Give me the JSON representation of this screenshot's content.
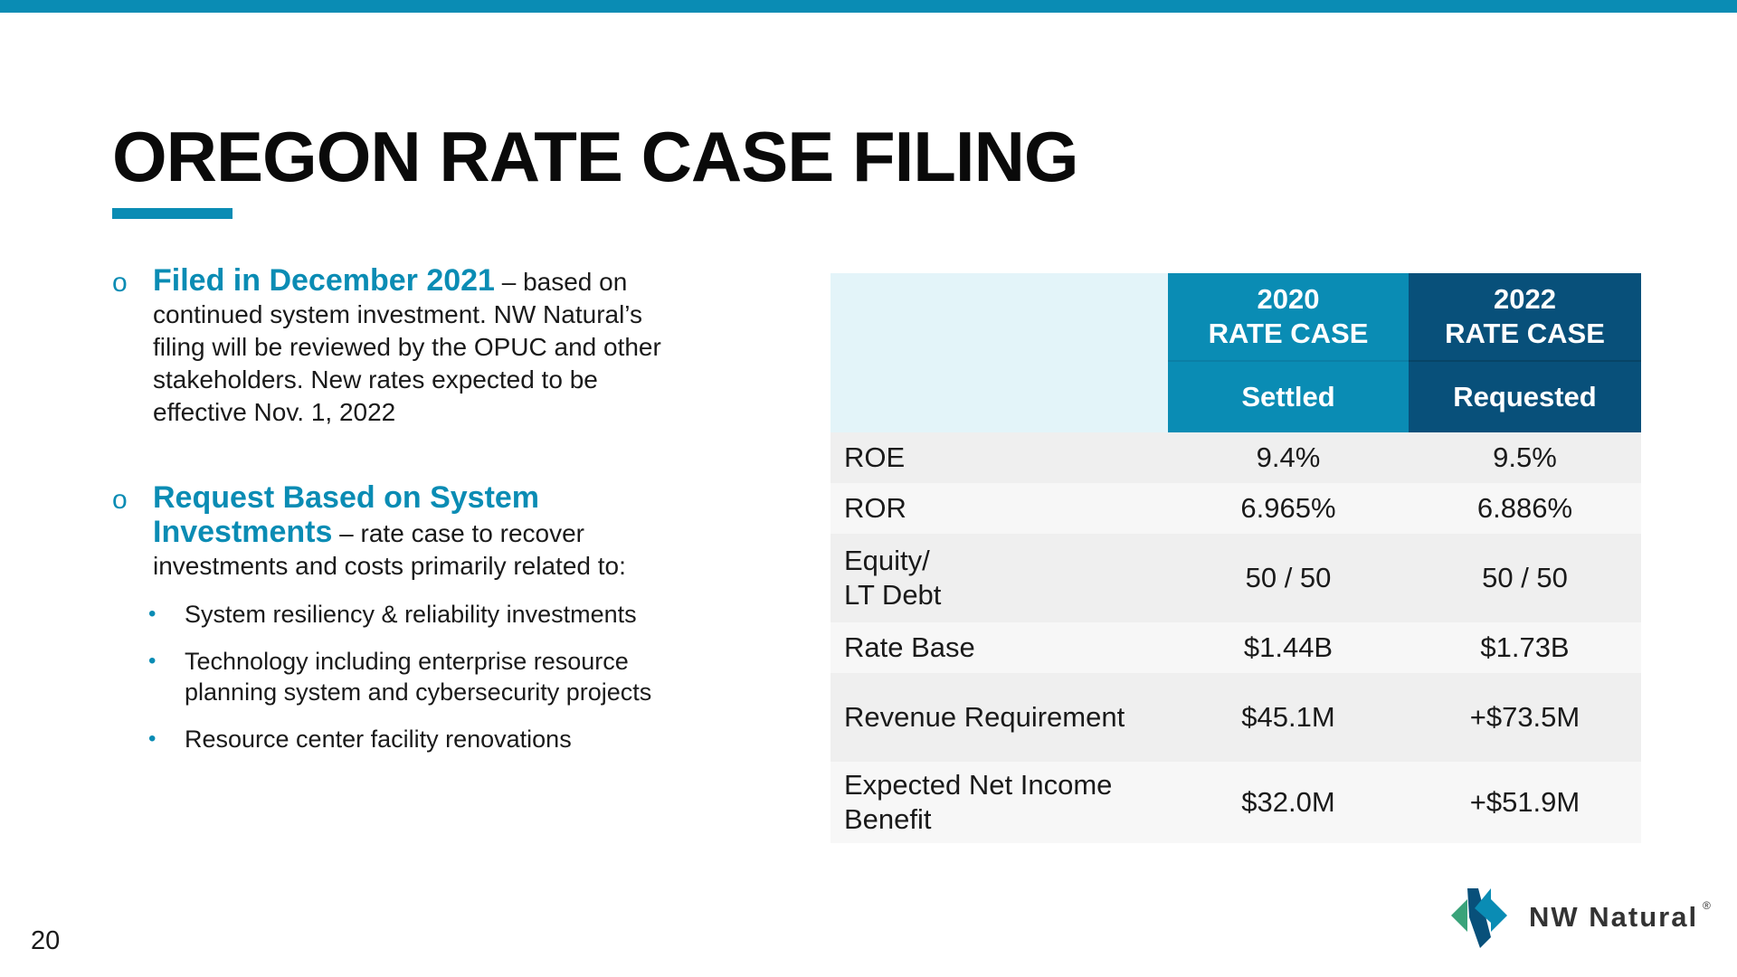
{
  "slide": {
    "title": "OREGON RATE CASE FILING",
    "page_number": "20"
  },
  "bullets": [
    {
      "highlight": "Filed in December 2021",
      "text": " – based on continued system investment. NW Natural’s filing will be reviewed by the OPUC and other stakeholders. New rates expected to be effective Nov. 1, 2022"
    },
    {
      "highlight": "Request Based on System Investments",
      "text": " – rate case to recover investments and costs primarily related to:",
      "sub_items": [
        "System resiliency & reliability investments",
        "Technology including enterprise resource planning system and cybersecurity projects",
        "Resource center facility renovations"
      ]
    }
  ],
  "table": {
    "col_2020": {
      "year": "2020",
      "label": "RATE CASE",
      "status": "Settled"
    },
    "col_2022": {
      "year": "2022",
      "label": "RATE CASE",
      "status": "Requested"
    },
    "rows": [
      {
        "label": "ROE",
        "v2020": "9.4%",
        "v2022": "9.5%"
      },
      {
        "label": "ROR",
        "v2020": "6.965%",
        "v2022": "6.886%"
      },
      {
        "label_line1": "Equity/",
        "label_line2": "LT Debt",
        "v2020": "50 / 50",
        "v2022": "50 / 50"
      },
      {
        "label": "Rate Base",
        "v2020": "$1.44B",
        "v2022": "$1.73B"
      },
      {
        "label": "Revenue Requirement",
        "v2020": "$45.1M",
        "v2022": "+$73.5M"
      },
      {
        "label_line1": "Expected Net Income",
        "label_line2": "Benefit",
        "v2020": "$32.0M",
        "v2022": "+$51.9M"
      }
    ]
  },
  "logo": {
    "text": "NW Natural",
    "registered": "®",
    "colors": {
      "teal": "#0a8cb4",
      "green": "#3aa37a",
      "navy": "#08507a"
    }
  },
  "colors": {
    "accent": "#0a8cb4",
    "dark_accent": "#08507a",
    "header_blank": "#e3f4f9"
  }
}
